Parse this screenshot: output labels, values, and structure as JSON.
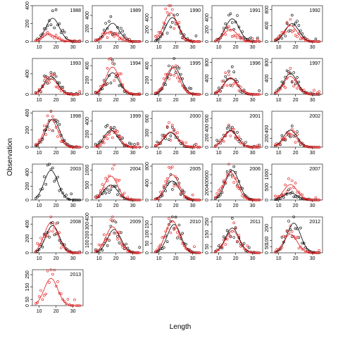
{
  "chart_data": {
    "type": "scatter",
    "title": "",
    "xlabel": "Length",
    "ylabel": "Observation",
    "xlim": [
      6,
      36
    ],
    "x_ticks": [
      10,
      20,
      30
    ],
    "grid": false,
    "legend": "none",
    "colors": {
      "black_series": "#000000",
      "red_series": "#e31a1c"
    },
    "panels": [
      {
        "label": "1988",
        "ymax": 400,
        "y_ticks": [
          0,
          200,
          400
        ],
        "black_peak": 260,
        "red_peak": 80,
        "black_mu": 18,
        "red_mu": 16,
        "scatter": 0.55,
        "seed": 1
      },
      {
        "label": "1989",
        "ymax": 550,
        "y_ticks": [
          0,
          200,
          400
        ],
        "black_peak": 280,
        "red_peak": 150,
        "black_mu": 18,
        "red_mu": 17,
        "scatter": 0.65,
        "seed": 2
      },
      {
        "label": "1990",
        "ymax": 600,
        "y_ticks": [
          0,
          200,
          400
        ],
        "black_peak": 400,
        "red_peak": 480,
        "black_mu": 18,
        "red_mu": 17,
        "scatter": 0.55,
        "seed": 3
      },
      {
        "label": "1991",
        "ymax": 600,
        "y_ticks": [
          0,
          200,
          400
        ],
        "black_peak": 380,
        "red_peak": 200,
        "black_mu": 18,
        "red_mu": 17,
        "scatter": 0.6,
        "seed": 4
      },
      {
        "label": "1992",
        "ymax": 900,
        "y_ticks": [
          0,
          400,
          800
        ],
        "black_peak": 450,
        "red_peak": 400,
        "black_mu": 18,
        "red_mu": 17,
        "scatter": 0.6,
        "seed": 5
      },
      {
        "label": "1993",
        "ymax": 700,
        "y_ticks": [
          0,
          400
        ],
        "black_peak": 350,
        "red_peak": 300,
        "black_mu": 17,
        "red_mu": 17,
        "scatter": 0.55,
        "seed": 6
      },
      {
        "label": "1994",
        "ymax": 500,
        "y_ticks": [
          0,
          200,
          400
        ],
        "black_peak": 300,
        "red_peak": 380,
        "black_mu": 18,
        "red_mu": 18,
        "scatter": 0.5,
        "seed": 7
      },
      {
        "label": "1995",
        "ymax": 500,
        "y_ticks": [
          0,
          200,
          400
        ],
        "black_peak": 380,
        "red_peak": 370,
        "black_mu": 19,
        "red_mu": 18,
        "scatter": 0.35,
        "seed": 8
      },
      {
        "label": "1996",
        "ymax": 900,
        "y_ticks": [
          0,
          400,
          800
        ],
        "black_peak": 400,
        "red_peak": 420,
        "black_mu": 17,
        "red_mu": 17,
        "scatter": 0.6,
        "seed": 9
      },
      {
        "label": "1997",
        "ymax": 900,
        "y_ticks": [
          0,
          400,
          800
        ],
        "black_peak": 520,
        "red_peak": 450,
        "black_mu": 17,
        "red_mu": 17,
        "scatter": 0.5,
        "seed": 10
      },
      {
        "label": "1998",
        "ymax": 420,
        "y_ticks": [
          0,
          200,
          400
        ],
        "black_peak": 330,
        "red_peak": 320,
        "black_mu": 18,
        "red_mu": 17,
        "scatter": 0.45,
        "seed": 11
      },
      {
        "label": "1999",
        "ymax": 550,
        "y_ticks": [
          0,
          200,
          400
        ],
        "black_peak": 260,
        "red_peak": 250,
        "black_mu": 17,
        "red_mu": 18,
        "scatter": 0.6,
        "seed": 12
      },
      {
        "label": "2000",
        "ymax": 750,
        "y_ticks": [
          0,
          300,
          600
        ],
        "black_peak": 300,
        "red_peak": 320,
        "black_mu": 17,
        "red_mu": 17,
        "scatter": 0.55,
        "seed": 13
      },
      {
        "label": "2001",
        "ymax": 750,
        "y_ticks": [
          0,
          200,
          400,
          600
        ],
        "black_peak": 350,
        "red_peak": 330,
        "black_mu": 17,
        "red_mu": 17,
        "scatter": 0.5,
        "seed": 14
      },
      {
        "label": "2002",
        "ymax": 800,
        "y_ticks": [
          0,
          200,
          400
        ],
        "black_peak": 380,
        "red_peak": 300,
        "black_mu": 17,
        "red_mu": 17,
        "scatter": 0.55,
        "seed": 15
      },
      {
        "label": "2003",
        "ymax": 520,
        "y_ticks": [
          0,
          200,
          400
        ],
        "black_peak": 430,
        "red_peak": 0,
        "black_mu": 17,
        "red_mu": 17,
        "scatter": 0.35,
        "seed": 16
      },
      {
        "label": "2004",
        "ymax": 1200,
        "y_ticks": [
          0,
          500,
          1000
        ],
        "black_peak": 500,
        "red_peak": 800,
        "black_mu": 17,
        "red_mu": 17,
        "scatter": 0.5,
        "seed": 17
      },
      {
        "label": "2005",
        "ymax": 850,
        "y_ticks": [
          0,
          400,
          800
        ],
        "black_peak": 450,
        "red_peak": 600,
        "black_mu": 18,
        "red_mu": 18,
        "scatter": 0.5,
        "seed": 18
      },
      {
        "label": "2006",
        "ymax": 850,
        "y_ticks": [
          0,
          200,
          400,
          600
        ],
        "black_peak": 700,
        "red_peak": 650,
        "black_mu": 18,
        "red_mu": 17,
        "scatter": 0.35,
        "seed": 19
      },
      {
        "label": "2007",
        "ymax": 1400,
        "y_ticks": [
          0,
          500,
          1000
        ],
        "black_peak": 280,
        "red_peak": 600,
        "black_mu": 17,
        "red_mu": 17,
        "scatter": 0.55,
        "seed": 20
      },
      {
        "label": "2008",
        "ymax": 500,
        "y_ticks": [
          0,
          200,
          400
        ],
        "black_peak": 380,
        "red_peak": 420,
        "black_mu": 18,
        "red_mu": 17,
        "scatter": 0.5,
        "seed": 21
      },
      {
        "label": "2009",
        "ymax": 400,
        "y_ticks": [
          0,
          100,
          200,
          300,
          400
        ],
        "black_peak": 260,
        "red_peak": 290,
        "black_mu": 19,
        "red_mu": 18,
        "scatter": 0.5,
        "seed": 22
      },
      {
        "label": "2010",
        "ymax": 190,
        "y_ticks": [
          0,
          50,
          100,
          150
        ],
        "black_peak": 150,
        "red_peak": 170,
        "black_mu": 19,
        "red_mu": 18,
        "scatter": 0.45,
        "seed": 23
      },
      {
        "label": "2011",
        "ymax": 290,
        "y_ticks": [
          0,
          50,
          150,
          250
        ],
        "black_peak": 200,
        "red_peak": 180,
        "black_mu": 18,
        "red_mu": 18,
        "scatter": 0.45,
        "seed": 24
      },
      {
        "label": "2012",
        "ymax": 290,
        "y_ticks": [
          0,
          50,
          100,
          200
        ],
        "black_peak": 240,
        "red_peak": 150,
        "black_mu": 19,
        "red_mu": 17,
        "scatter": 0.5,
        "seed": 25
      },
      {
        "label": "2013",
        "ymax": 290,
        "y_ticks": [
          0,
          50,
          150,
          250
        ],
        "black_peak": 0,
        "red_peak": 220,
        "black_mu": 18,
        "red_mu": 17,
        "scatter": 0.6,
        "seed": 26
      }
    ]
  }
}
